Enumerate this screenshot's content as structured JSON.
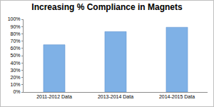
{
  "chart_data": {
    "type": "bar",
    "title": "Increasing % Compliance in Magnets",
    "categories": [
      "2011-2012 Data",
      "2013-2014 Data",
      "2014-2015 Data"
    ],
    "values": [
      65,
      83,
      89
    ],
    "color": "#7fb1e6",
    "ylim": [
      0,
      100
    ],
    "yticks": [
      {
        "value": 0,
        "label": "0%"
      },
      {
        "value": 10,
        "label": "10%"
      },
      {
        "value": 20,
        "label": "20%"
      },
      {
        "value": 30,
        "label": "30%"
      },
      {
        "value": 40,
        "label": "40%"
      },
      {
        "value": 50,
        "label": "50%"
      },
      {
        "value": 60,
        "label": "60%"
      },
      {
        "value": 70,
        "label": "70%"
      },
      {
        "value": 80,
        "label": "80%"
      },
      {
        "value": 90,
        "label": "90%"
      },
      {
        "value": 100,
        "label": "100%"
      }
    ],
    "grid": false
  }
}
